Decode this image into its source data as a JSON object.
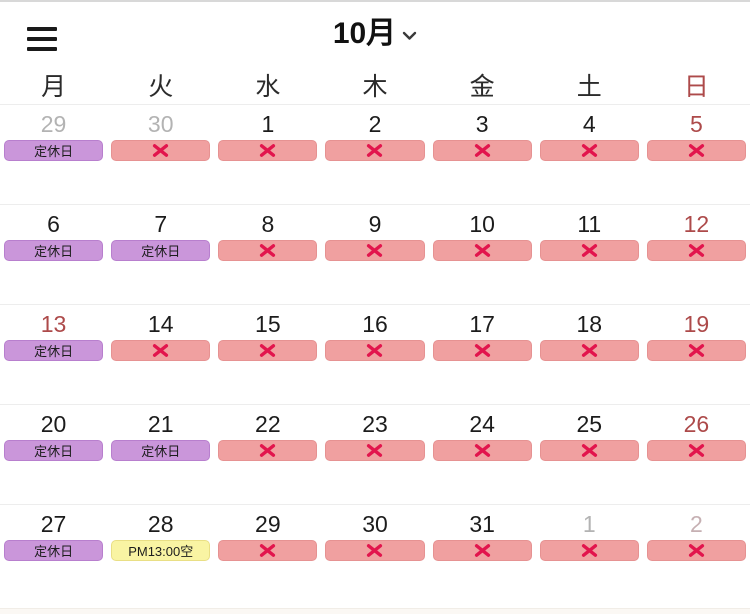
{
  "header": {
    "title": "10月"
  },
  "icons": {
    "menu": "hamburger-icon",
    "month_dropdown": "chevron-down-icon",
    "closed_mark": "x-icon"
  },
  "colors": {
    "text": "#1c1c1c",
    "muted": "#b3b3b3",
    "muted_sunday": "#c6b0b3",
    "sunday_red": "#ad4a4a",
    "holiday_badge_bg": "#ca96da",
    "holiday_badge_border": "#b87fce",
    "closed_badge_bg": "#f0a0a0",
    "closed_badge_border": "#e69292",
    "open_badge_bg": "#f9f4a3",
    "open_badge_border": "#e9df85",
    "x_mark": "#e2154d"
  },
  "weekdays": [
    {
      "label": "月",
      "tone": "default"
    },
    {
      "label": "火",
      "tone": "default"
    },
    {
      "label": "水",
      "tone": "default"
    },
    {
      "label": "木",
      "tone": "default"
    },
    {
      "label": "金",
      "tone": "default"
    },
    {
      "label": "土",
      "tone": "default"
    },
    {
      "label": "日",
      "tone": "sunday"
    }
  ],
  "badge_legend": {
    "holiday": "定休日",
    "closed": "✕",
    "open_slot": "PM13:00空"
  },
  "weeks": [
    [
      {
        "date": "29",
        "tone": "muted",
        "badge": {
          "type": "holiday",
          "label": "定休日"
        }
      },
      {
        "date": "30",
        "tone": "muted",
        "badge": {
          "type": "closed",
          "label": ""
        }
      },
      {
        "date": "1",
        "tone": "default",
        "badge": {
          "type": "closed",
          "label": ""
        }
      },
      {
        "date": "2",
        "tone": "default",
        "badge": {
          "type": "closed",
          "label": ""
        }
      },
      {
        "date": "3",
        "tone": "default",
        "badge": {
          "type": "closed",
          "label": ""
        }
      },
      {
        "date": "4",
        "tone": "default",
        "badge": {
          "type": "closed",
          "label": ""
        }
      },
      {
        "date": "5",
        "tone": "sunday",
        "badge": {
          "type": "closed",
          "label": ""
        }
      }
    ],
    [
      {
        "date": "6",
        "tone": "default",
        "badge": {
          "type": "holiday",
          "label": "定休日"
        }
      },
      {
        "date": "7",
        "tone": "default",
        "badge": {
          "type": "holiday",
          "label": "定休日"
        }
      },
      {
        "date": "8",
        "tone": "default",
        "badge": {
          "type": "closed",
          "label": ""
        }
      },
      {
        "date": "9",
        "tone": "default",
        "badge": {
          "type": "closed",
          "label": ""
        }
      },
      {
        "date": "10",
        "tone": "default",
        "badge": {
          "type": "closed",
          "label": ""
        }
      },
      {
        "date": "11",
        "tone": "default",
        "badge": {
          "type": "closed",
          "label": ""
        }
      },
      {
        "date": "12",
        "tone": "sunday",
        "badge": {
          "type": "closed",
          "label": ""
        }
      }
    ],
    [
      {
        "date": "13",
        "tone": "sunday",
        "badge": {
          "type": "holiday",
          "label": "定休日"
        }
      },
      {
        "date": "14",
        "tone": "default",
        "badge": {
          "type": "closed",
          "label": ""
        }
      },
      {
        "date": "15",
        "tone": "default",
        "badge": {
          "type": "closed",
          "label": ""
        }
      },
      {
        "date": "16",
        "tone": "default",
        "badge": {
          "type": "closed",
          "label": ""
        }
      },
      {
        "date": "17",
        "tone": "default",
        "badge": {
          "type": "closed",
          "label": ""
        }
      },
      {
        "date": "18",
        "tone": "default",
        "badge": {
          "type": "closed",
          "label": ""
        }
      },
      {
        "date": "19",
        "tone": "sunday",
        "badge": {
          "type": "closed",
          "label": ""
        }
      }
    ],
    [
      {
        "date": "20",
        "tone": "default",
        "badge": {
          "type": "holiday",
          "label": "定休日"
        }
      },
      {
        "date": "21",
        "tone": "default",
        "badge": {
          "type": "holiday",
          "label": "定休日"
        }
      },
      {
        "date": "22",
        "tone": "default",
        "badge": {
          "type": "closed",
          "label": ""
        }
      },
      {
        "date": "23",
        "tone": "default",
        "badge": {
          "type": "closed",
          "label": ""
        }
      },
      {
        "date": "24",
        "tone": "default",
        "badge": {
          "type": "closed",
          "label": ""
        }
      },
      {
        "date": "25",
        "tone": "default",
        "badge": {
          "type": "closed",
          "label": ""
        }
      },
      {
        "date": "26",
        "tone": "sunday",
        "badge": {
          "type": "closed",
          "label": ""
        }
      }
    ],
    [
      {
        "date": "27",
        "tone": "default",
        "badge": {
          "type": "holiday",
          "label": "定休日"
        }
      },
      {
        "date": "28",
        "tone": "default",
        "badge": {
          "type": "open-slot",
          "label": "PM13:00空"
        }
      },
      {
        "date": "29",
        "tone": "default",
        "badge": {
          "type": "closed",
          "label": ""
        }
      },
      {
        "date": "30",
        "tone": "default",
        "badge": {
          "type": "closed",
          "label": ""
        }
      },
      {
        "date": "31",
        "tone": "default",
        "badge": {
          "type": "closed",
          "label": ""
        }
      },
      {
        "date": "1",
        "tone": "muted",
        "badge": {
          "type": "closed",
          "label": ""
        }
      },
      {
        "date": "2",
        "tone": "muted_sunday",
        "badge": {
          "type": "closed",
          "label": ""
        }
      }
    ]
  ]
}
